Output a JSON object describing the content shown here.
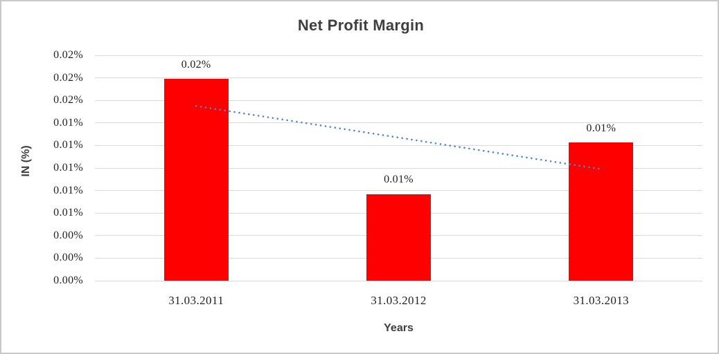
{
  "title": "Net Profit Margin",
  "axes": {
    "y_title": "IN (%)",
    "x_title": "Years"
  },
  "chart_data": {
    "type": "bar",
    "title": "Net Profit Margin",
    "xlabel": "Years",
    "ylabel": "IN (%)",
    "categories": [
      "31.03.2011",
      "31.03.2012",
      "31.03.2013"
    ],
    "values": [
      0.0179,
      0.0077,
      0.0123
    ],
    "data_labels": [
      "0.02%",
      "0.01%",
      "0.01%"
    ],
    "y_ticks_top_to_bottom": [
      "0.02%",
      "0.02%",
      "0.02%",
      "0.01%",
      "0.01%",
      "0.01%",
      "0.01%",
      "0.01%",
      "0.00%",
      "0.00%",
      "0.00%"
    ],
    "ylim": [
      0,
      0.02
    ],
    "grid": true,
    "legend": false,
    "bar_color": "#ff0000",
    "gridline_color": "#d9d9d9",
    "title_color": "#3f3f3f",
    "label_color": "#1f1f1f",
    "trendline": {
      "type": "linear",
      "style": "dotted",
      "color": "#4e87c9",
      "start_value": 0.0155,
      "end_value": 0.0099
    }
  }
}
